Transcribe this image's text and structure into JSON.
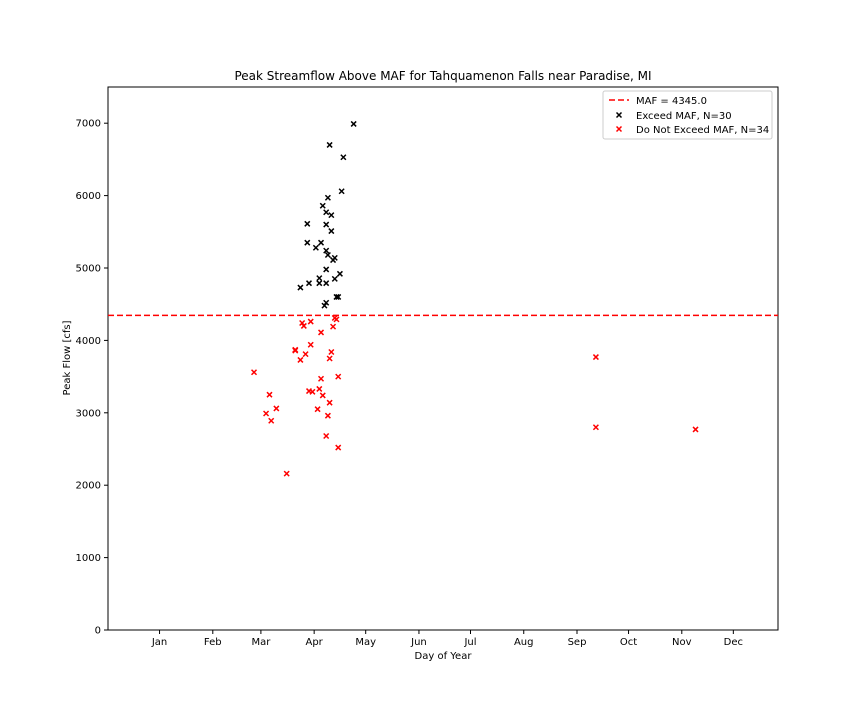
{
  "chart_data": {
    "type": "scatter",
    "title": "Peak Streamflow Above MAF for Tahquamenon Falls near Paradise, MI",
    "xlabel": "Day of Year",
    "ylabel": "Peak Flow [cfs]",
    "xlim": [
      -30,
      360
    ],
    "ylim": [
      0,
      7500
    ],
    "x_ticks": [
      {
        "value": 0,
        "label": "Jan"
      },
      {
        "value": 31,
        "label": "Feb"
      },
      {
        "value": 59,
        "label": "Mar"
      },
      {
        "value": 90,
        "label": "Apr"
      },
      {
        "value": 120,
        "label": "May"
      },
      {
        "value": 151,
        "label": "Jun"
      },
      {
        "value": 181,
        "label": "Jul"
      },
      {
        "value": 212,
        "label": "Aug"
      },
      {
        "value": 243,
        "label": "Sep"
      },
      {
        "value": 273,
        "label": "Oct"
      },
      {
        "value": 304,
        "label": "Nov"
      },
      {
        "value": 334,
        "label": "Dec"
      }
    ],
    "y_ticks": [
      {
        "value": 0,
        "label": "0"
      },
      {
        "value": 1000,
        "label": "1000"
      },
      {
        "value": 2000,
        "label": "2000"
      },
      {
        "value": 3000,
        "label": "3000"
      },
      {
        "value": 4000,
        "label": "4000"
      },
      {
        "value": 5000,
        "label": "5000"
      },
      {
        "value": 6000,
        "label": "6000"
      },
      {
        "value": 7000,
        "label": "7000"
      }
    ],
    "grid": false,
    "legend_position": "top-right",
    "threshold": {
      "name": "MAF = 4345.0",
      "value": 4345.0,
      "color": "#ff0000",
      "style": "dashed"
    },
    "series": [
      {
        "name": "Exceed MAF, N=30",
        "color": "#000000",
        "marker": "x",
        "points": [
          [
            82,
            4730
          ],
          [
            86,
            5610
          ],
          [
            86,
            5350
          ],
          [
            87,
            4790
          ],
          [
            91,
            5280
          ],
          [
            93,
            4790
          ],
          [
            93,
            4860
          ],
          [
            94,
            5350
          ],
          [
            95,
            5860
          ],
          [
            96,
            4480
          ],
          [
            97,
            4520
          ],
          [
            97,
            4790
          ],
          [
            97,
            5240
          ],
          [
            97,
            5600
          ],
          [
            97,
            5770
          ],
          [
            97,
            4980
          ],
          [
            98,
            5180
          ],
          [
            98,
            5970
          ],
          [
            99,
            6700
          ],
          [
            100,
            5730
          ],
          [
            100,
            5510
          ],
          [
            101,
            5110
          ],
          [
            102,
            5140
          ],
          [
            102,
            4850
          ],
          [
            103,
            4600
          ],
          [
            104,
            4600
          ],
          [
            105,
            4920
          ],
          [
            106,
            6060
          ],
          [
            107,
            6530
          ],
          [
            113,
            6990
          ]
        ]
      },
      {
        "name": "Do Not Exceed MAF, N=34",
        "color": "#ff0000",
        "marker": "x",
        "points": [
          [
            55,
            3560
          ],
          [
            62,
            2990
          ],
          [
            64,
            3250
          ],
          [
            65,
            2890
          ],
          [
            68,
            3060
          ],
          [
            74,
            2160
          ],
          [
            79,
            3870
          ],
          [
            79,
            3860
          ],
          [
            82,
            3730
          ],
          [
            83,
            4240
          ],
          [
            84,
            4200
          ],
          [
            85,
            3810
          ],
          [
            87,
            3300
          ],
          [
            88,
            4260
          ],
          [
            88,
            3940
          ],
          [
            89,
            3290
          ],
          [
            92,
            3050
          ],
          [
            93,
            3330
          ],
          [
            94,
            3470
          ],
          [
            94,
            4110
          ],
          [
            95,
            3240
          ],
          [
            97,
            2680
          ],
          [
            98,
            2960
          ],
          [
            99,
            3140
          ],
          [
            99,
            3750
          ],
          [
            100,
            3840
          ],
          [
            101,
            4190
          ],
          [
            102,
            4310
          ],
          [
            103,
            4290
          ],
          [
            104,
            3500
          ],
          [
            104,
            2520
          ],
          [
            254,
            3770
          ],
          [
            254,
            2800
          ],
          [
            312,
            2770
          ]
        ]
      }
    ]
  }
}
